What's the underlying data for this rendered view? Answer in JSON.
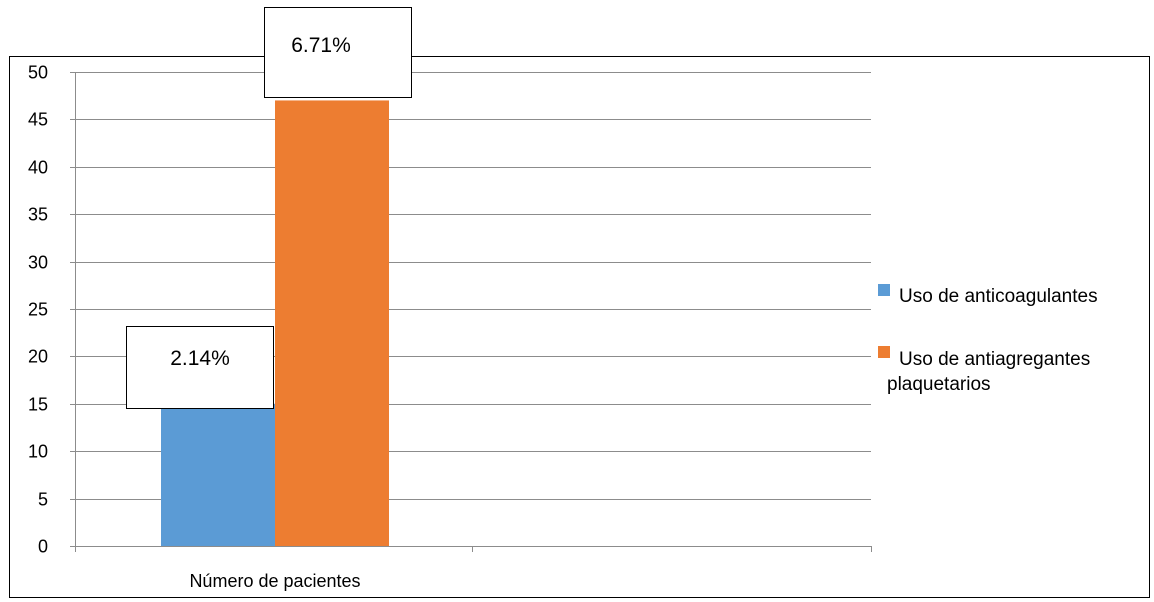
{
  "chart_data": {
    "type": "bar",
    "categories": [
      "Número de pacientes"
    ],
    "series": [
      {
        "name": "Uso de anticoagulantes",
        "values": [
          15
        ],
        "color": "#5B9BD5",
        "data_label": "2.14%"
      },
      {
        "name": "Uso de antiagregantes plaquetarios",
        "values": [
          47
        ],
        "color": "#ED7D31",
        "data_label": "6.71%"
      }
    ],
    "ylim": [
      0,
      50
    ],
    "yticks": [
      0,
      5,
      10,
      15,
      20,
      25,
      30,
      35,
      40,
      45,
      50
    ],
    "grid": true,
    "legend": "right"
  }
}
